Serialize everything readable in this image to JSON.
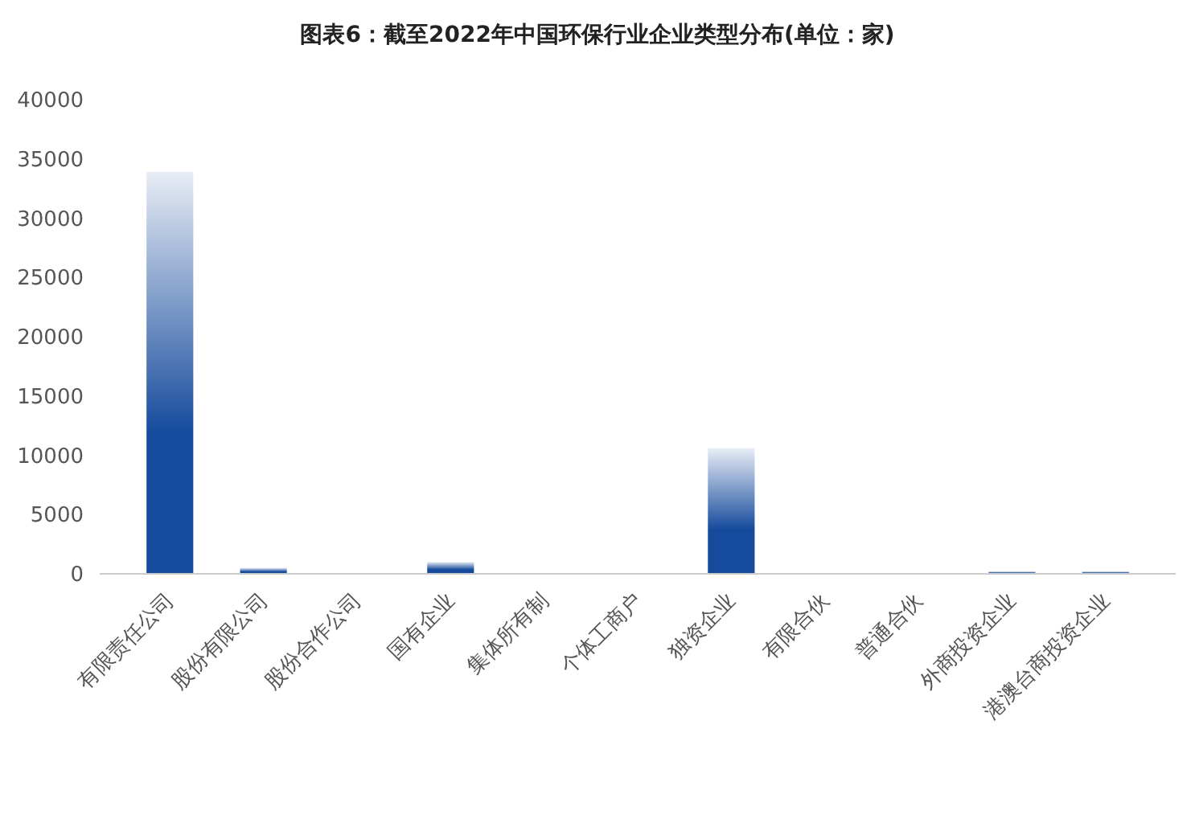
{
  "chart_data": {
    "type": "bar",
    "title": "图表6：截至2022年中国环保行业企业类型分布(单位：家)",
    "categories": [
      "有限责任公司",
      "股份有限公司",
      "股份合作公司",
      "国有企业",
      "集体所有制",
      "个体工商户",
      "独资企业",
      "有限合伙",
      "普通合伙",
      "外商投资企业",
      "港澳台商投资企业"
    ],
    "values": [
      33900,
      500,
      0,
      1000,
      0,
      0,
      10600,
      0,
      0,
      200,
      200
    ],
    "color": "#154a9c",
    "ylim": [
      0,
      40000
    ],
    "yticks": [
      0,
      5000,
      10000,
      15000,
      20000,
      25000,
      30000,
      35000,
      40000
    ],
    "grid": false
  }
}
